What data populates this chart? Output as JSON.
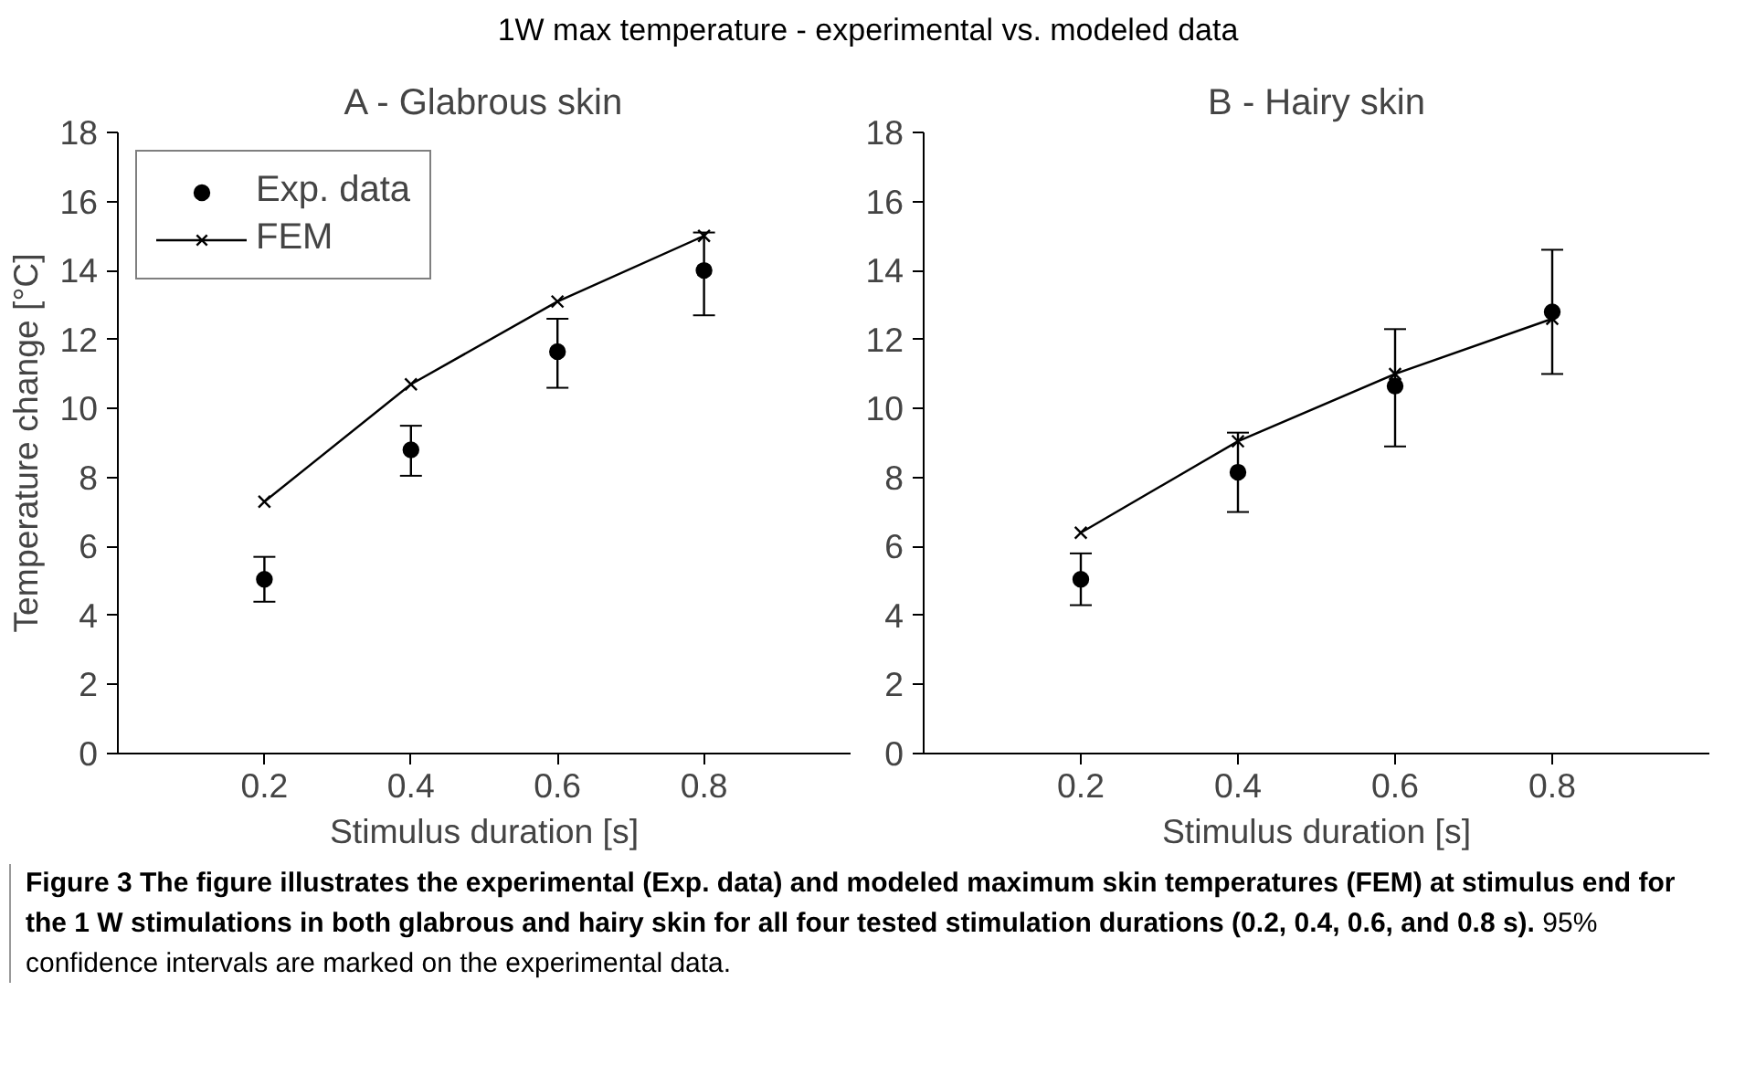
{
  "chart_data": [
    {
      "type": "scatter",
      "title": "A - Glabrous skin",
      "xlabel": "Stimulus duration [s]",
      "ylabel": "Temperature change [°C]",
      "x": [
        0.2,
        0.4,
        0.6,
        0.8
      ],
      "xlim": [
        0,
        1.0
      ],
      "xticks": [
        0.2,
        0.4,
        0.6,
        0.8
      ],
      "ylim": [
        0,
        18
      ],
      "yticks": [
        0,
        2,
        4,
        6,
        8,
        10,
        12,
        14,
        16,
        18
      ],
      "grid": false,
      "legend": "top left",
      "series": [
        {
          "name": "Exp. data",
          "marker": "circle",
          "color": "#000000",
          "values": [
            5.05,
            8.8,
            11.65,
            14.0
          ],
          "errors": [
            [
              4.4,
              5.7
            ],
            [
              8.05,
              9.5
            ],
            [
              10.6,
              12.6
            ],
            [
              12.7,
              15.1
            ]
          ]
        },
        {
          "name": "FEM",
          "type": "line",
          "marker": "cross",
          "color": "#000000",
          "values": [
            7.3,
            10.7,
            13.1,
            15.0
          ]
        }
      ],
      "annotations": [
        "1W max temperature - experimental vs. modeled data",
        "Figure 3 The figure illustrates the experimental (Exp. data) and modeled maximum skin temperatures (FEM) at stimulus end for the 1 W stimulations in both glabrous and hairy skin for all four tested stimulation durations (0.2, 0.4, 0.6, and 0.8 s).",
        "95% confidence intervals are marked on the experimental data."
      ]
    },
    {
      "type": "scatter",
      "title": "B - Hairy skin",
      "xlabel": "Stimulus duration [s]",
      "x": [
        0.2,
        0.4,
        0.6,
        0.8
      ],
      "xlim": [
        0,
        1.0
      ],
      "xticks": [
        0.2,
        0.4,
        0.6,
        0.8
      ],
      "ylim": [
        0,
        18
      ],
      "yticks": [
        0,
        2,
        4,
        6,
        8,
        10,
        12,
        14,
        16,
        18
      ],
      "grid": false,
      "series": [
        {
          "marker": "circle",
          "color": "#000000",
          "values": [
            5.05,
            8.15,
            10.65,
            12.8
          ],
          "errors": [
            [
              4.3,
              5.8
            ],
            [
              7.0,
              9.3
            ],
            [
              8.9,
              12.3
            ],
            [
              11.0,
              14.6
            ]
          ]
        },
        {
          "type": "line",
          "marker": "cross",
          "color": "#000000",
          "values": [
            6.4,
            9.05,
            11.0,
            12.6
          ]
        }
      ]
    }
  ]
}
